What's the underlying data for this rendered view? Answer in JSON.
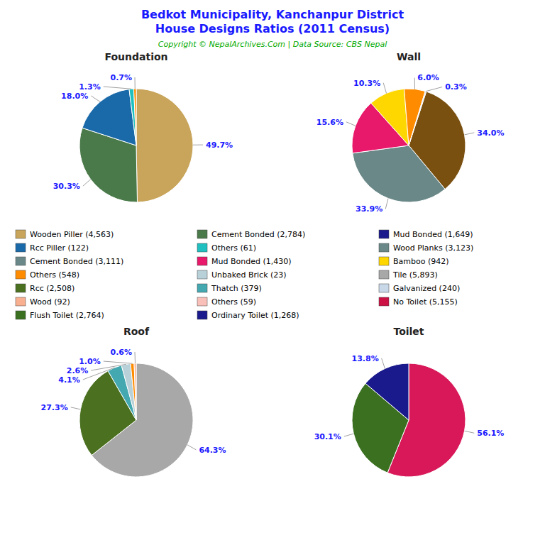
{
  "title": "Bedkot Municipality, Kanchanpur District\nHouse Designs Ratios (2011 Census)",
  "title_color": "#1a1aff",
  "subtitle": "Copyright © NepalArchives.Com | Data Source: CBS Nepal",
  "subtitle_color": "#00aa00",
  "label_color": "#1a1aff",
  "chart_data": [
    {
      "type": "pie",
      "title": "Foundation",
      "values": [
        49.7,
        30.3,
        18.0,
        1.3,
        0.7
      ],
      "value_labels": [
        "49.7%",
        "30.3%",
        "18.0%",
        "1.3%",
        "0.7%"
      ],
      "colors": [
        "#c8a55a",
        "#4a7a4a",
        "#1a6aaa",
        "#20c0c0",
        "#ff8c00"
      ],
      "data_labels": true
    },
    {
      "type": "pie",
      "title": "Wall",
      "values": [
        34.0,
        33.9,
        15.6,
        10.3,
        6.0,
        0.3
      ],
      "value_labels": [
        "34.0%",
        "33.9%",
        "15.6%",
        "10.3%",
        "6.0%",
        "0.3%"
      ],
      "colors": [
        "#7a5010",
        "#6a8888",
        "#e8186a",
        "#ffd700",
        "#ff8c00",
        "#c8d8e8"
      ],
      "data_labels": true
    },
    {
      "type": "pie",
      "title": "Roof",
      "values": [
        64.3,
        27.3,
        4.1,
        2.6,
        1.0,
        0.6
      ],
      "value_labels": [
        "64.3%",
        "27.3%",
        "4.1%",
        "2.6%",
        "1.0%",
        "0.6%"
      ],
      "colors": [
        "#a8a8a8",
        "#4a7020",
        "#44a8b0",
        "#b8d0d8",
        "#ff8c00",
        "#f8b090"
      ],
      "data_labels": true
    },
    {
      "type": "pie",
      "title": "Toilet",
      "values": [
        56.1,
        30.1,
        13.8
      ],
      "value_labels": [
        "56.1%",
        "30.1%",
        "13.8%"
      ],
      "colors": [
        "#d81858",
        "#3a7020",
        "#1a1a8c"
      ],
      "data_labels": true
    }
  ],
  "legend_items": [
    {
      "label": "Wooden Piller (4,563)",
      "color": "#c8a55a"
    },
    {
      "label": "Rcc Piller (122)",
      "color": "#1a6aaa"
    },
    {
      "label": "Cement Bonded (3,111)",
      "color": "#6a8888"
    },
    {
      "label": "Others (548)",
      "color": "#ff8c00"
    },
    {
      "label": "Rcc (2,508)",
      "color": "#4a7020"
    },
    {
      "label": "Wood (92)",
      "color": "#f8b090"
    },
    {
      "label": "Flush Toilet (2,764)",
      "color": "#3a7020"
    },
    {
      "label": "Cement Bonded (2,784)",
      "color": "#4a7a4a"
    },
    {
      "label": "Others (61)",
      "color": "#20c0c0"
    },
    {
      "label": "Mud Bonded (1,430)",
      "color": "#e8186a"
    },
    {
      "label": "Unbaked Brick (23)",
      "color": "#b8d0d8"
    },
    {
      "label": "Thatch (379)",
      "color": "#44a8b0"
    },
    {
      "label": "Others (59)",
      "color": "#f8c0b8"
    },
    {
      "label": "Ordinary Toilet (1,268)",
      "color": "#1a1a8c"
    },
    {
      "label": "Mud Bonded (1,649)",
      "color": "#1a1a8c"
    },
    {
      "label": "Wood Planks (3,123)",
      "color": "#6a8888"
    },
    {
      "label": "Bamboo (942)",
      "color": "#ffd700"
    },
    {
      "label": "Tile (5,893)",
      "color": "#a8a8a8"
    },
    {
      "label": "Galvanized (240)",
      "color": "#c8d8e8"
    },
    {
      "label": "No Toilet (5,155)",
      "color": "#cc1144"
    }
  ]
}
